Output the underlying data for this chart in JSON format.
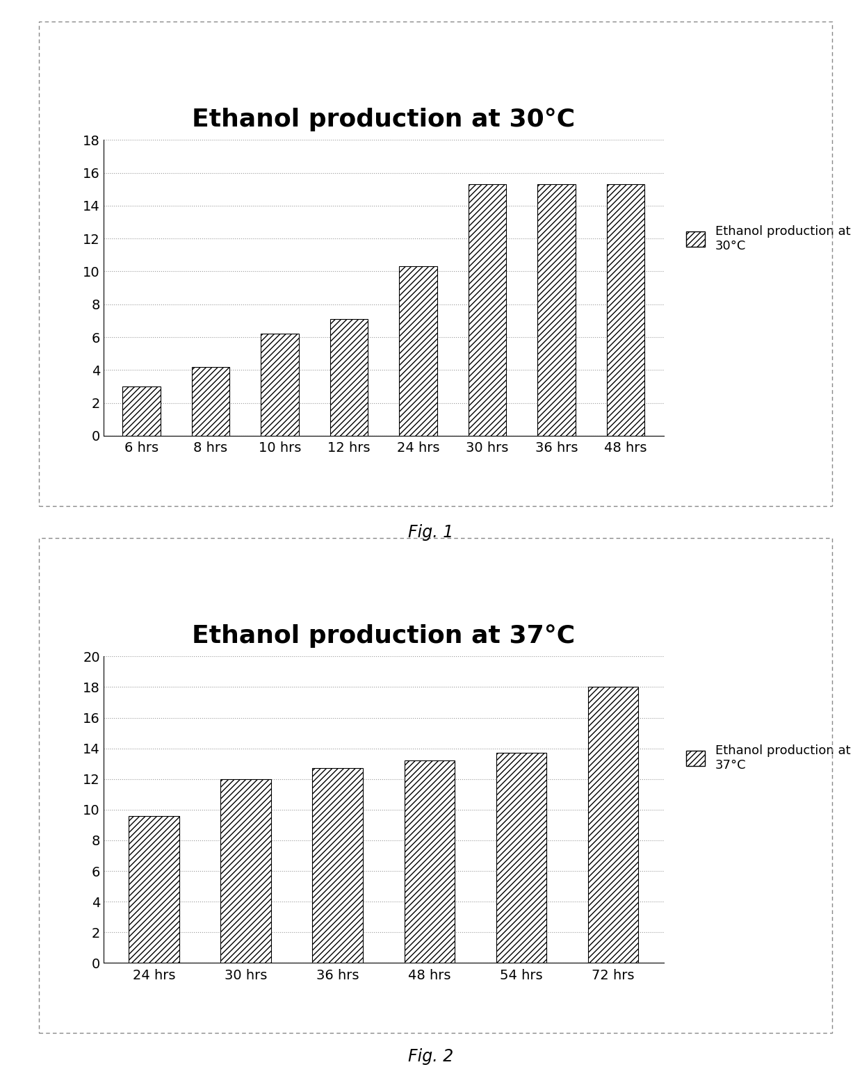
{
  "fig1": {
    "title": "Ethanol production at 30°C",
    "categories": [
      "6 hrs",
      "8 hrs",
      "10 hrs",
      "12 hrs",
      "24 hrs",
      "30 hrs",
      "36 hrs",
      "48 hrs"
    ],
    "values": [
      3.0,
      4.2,
      6.2,
      7.1,
      10.3,
      15.3,
      15.3,
      15.3
    ],
    "ylim": [
      0,
      18
    ],
    "yticks": [
      0,
      2,
      4,
      6,
      8,
      10,
      12,
      14,
      16,
      18
    ],
    "legend_label": "Ethanol production at\n30°C",
    "fig_label": "Fig. 1"
  },
  "fig2": {
    "title": "Ethanol production at 37°C",
    "categories": [
      "24 hrs",
      "30 hrs",
      "36 hrs",
      "48 hrs",
      "54 hrs",
      "72 hrs"
    ],
    "values": [
      9.6,
      12.0,
      12.7,
      13.2,
      13.7,
      18.0
    ],
    "ylim": [
      0,
      20
    ],
    "yticks": [
      0,
      2,
      4,
      6,
      8,
      10,
      12,
      14,
      16,
      18,
      20
    ],
    "legend_label": "Ethanol production at\n37°C",
    "fig_label": "Fig. 2"
  },
  "hatch_pattern": "////",
  "background_color": "#ffffff",
  "title_fontsize": 26,
  "tick_fontsize": 14,
  "legend_fontsize": 13,
  "figlabel_fontsize": 17,
  "border_color": "#999999",
  "grid_color": "#999999",
  "grid_linestyle": ":"
}
